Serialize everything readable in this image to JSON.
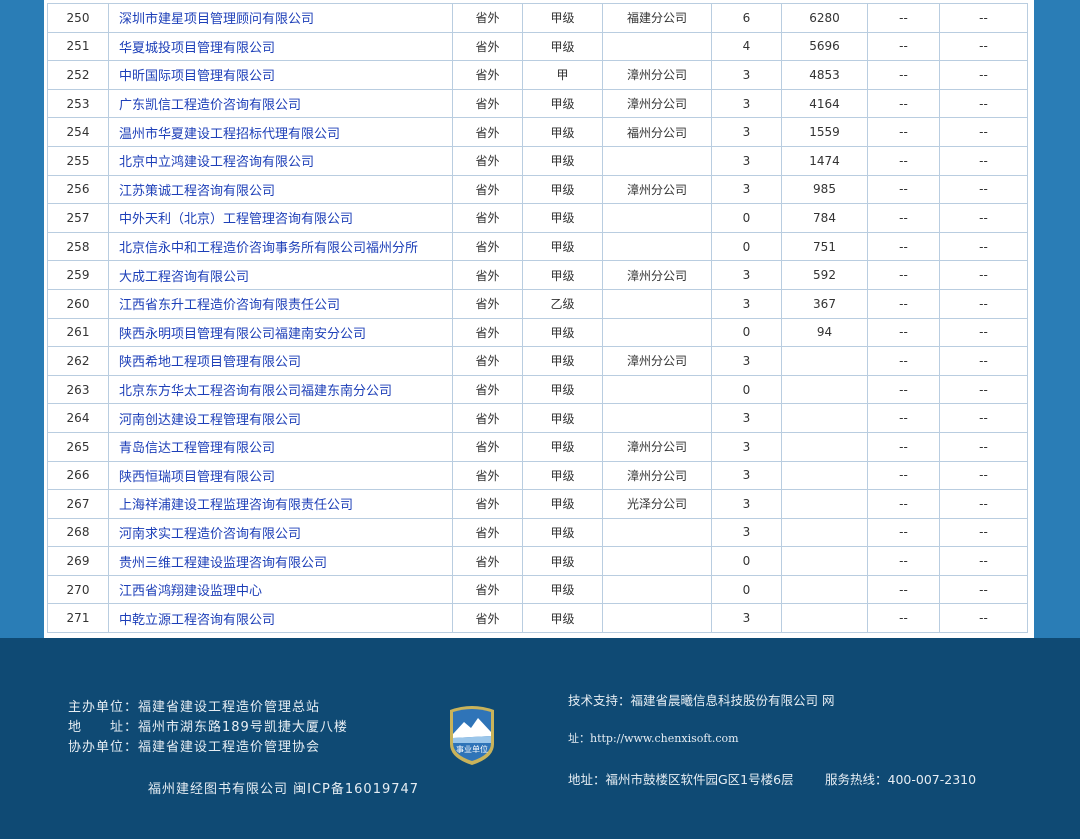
{
  "table": {
    "rows": [
      [
        "250",
        "深圳市建星项目管理顾问有限公司",
        "省外",
        "甲级",
        "福建分公司",
        "6",
        "6280",
        "--",
        "--"
      ],
      [
        "251",
        "华夏城投项目管理有限公司",
        "省外",
        "甲级",
        "",
        "4",
        "5696",
        "--",
        "--"
      ],
      [
        "252",
        "中昕国际项目管理有限公司",
        "省外",
        "甲",
        "漳州分公司",
        "3",
        "4853",
        "--",
        "--"
      ],
      [
        "253",
        "广东凯信工程造价咨询有限公司",
        "省外",
        "甲级",
        "漳州分公司",
        "3",
        "4164",
        "--",
        "--"
      ],
      [
        "254",
        "温州市华夏建设工程招标代理有限公司",
        "省外",
        "甲级",
        "福州分公司",
        "3",
        "1559",
        "--",
        "--"
      ],
      [
        "255",
        "北京中立鸿建设工程咨询有限公司",
        "省外",
        "甲级",
        "",
        "3",
        "1474",
        "--",
        "--"
      ],
      [
        "256",
        "江苏策诚工程咨询有限公司",
        "省外",
        "甲级",
        "漳州分公司",
        "3",
        "985",
        "--",
        "--"
      ],
      [
        "257",
        "中外天利（北京）工程管理咨询有限公司",
        "省外",
        "甲级",
        "",
        "0",
        "784",
        "--",
        "--"
      ],
      [
        "258",
        "北京信永中和工程造价咨询事务所有限公司福州分所",
        "省外",
        "甲级",
        "",
        "0",
        "751",
        "--",
        "--"
      ],
      [
        "259",
        "大成工程咨询有限公司",
        "省外",
        "甲级",
        "漳州分公司",
        "3",
        "592",
        "--",
        "--"
      ],
      [
        "260",
        "江西省东升工程造价咨询有限责任公司",
        "省外",
        "乙级",
        "",
        "3",
        "367",
        "--",
        "--"
      ],
      [
        "261",
        "陕西永明项目管理有限公司福建南安分公司",
        "省外",
        "甲级",
        "",
        "0",
        "94",
        "--",
        "--"
      ],
      [
        "262",
        "陕西希地工程项目管理有限公司",
        "省外",
        "甲级",
        "漳州分公司",
        "3",
        "",
        "--",
        "--"
      ],
      [
        "263",
        "北京东方华太工程咨询有限公司福建东南分公司",
        "省外",
        "甲级",
        "",
        "0",
        "",
        "--",
        "--"
      ],
      [
        "264",
        "河南创达建设工程管理有限公司",
        "省外",
        "甲级",
        "",
        "3",
        "",
        "--",
        "--"
      ],
      [
        "265",
        "青岛信达工程管理有限公司",
        "省外",
        "甲级",
        "漳州分公司",
        "3",
        "",
        "--",
        "--"
      ],
      [
        "266",
        "陕西恒瑞项目管理有限公司",
        "省外",
        "甲级",
        "漳州分公司",
        "3",
        "",
        "--",
        "--"
      ],
      [
        "267",
        "上海祥浦建设工程监理咨询有限责任公司",
        "省外",
        "甲级",
        "光泽分公司",
        "3",
        "",
        "--",
        "--"
      ],
      [
        "268",
        "河南求实工程造价咨询有限公司",
        "省外",
        "甲级",
        "",
        "3",
        "",
        "--",
        "--"
      ],
      [
        "269",
        "贵州三维工程建设监理咨询有限公司",
        "省外",
        "甲级",
        "",
        "0",
        "",
        "--",
        "--"
      ],
      [
        "270",
        "江西省鸿翔建设监理中心",
        "省外",
        "甲级",
        "",
        "0",
        "",
        "--",
        "--"
      ],
      [
        "271",
        "中乾立源工程咨询有限公司",
        "省外",
        "甲级",
        "",
        "3",
        "",
        "--",
        "--"
      ]
    ]
  },
  "footer": {
    "host": "主办单位：福建省建设工程造价管理总站",
    "address": "地　　址：福州市湖东路189号凯捷大厦八楼",
    "co_host": "协办单位：福建省建设工程造价管理协会",
    "icp": "福州建经图书有限公司  闽ICP备16019747",
    "badge_text": "事业单位",
    "tech_support": "技术支持：福建省晨曦信息科技股份有限公司 网",
    "url": "址：http://www.chenxisoft.com",
    "tech_address": "地址：福州市鼓楼区软件园G区1号楼6层",
    "hotline": "服务热线：400-007-2310"
  },
  "colors": {
    "page_bg": "#2a7db6",
    "footer_bg": "#0f4a74",
    "link": "#1d3fb8",
    "grid": "#b9cde0"
  }
}
